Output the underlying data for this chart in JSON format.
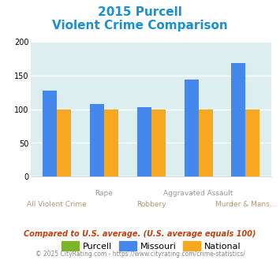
{
  "title_line1": "2015 Purcell",
  "title_line2": "Violent Crime Comparison",
  "groups": [
    "All Violent Crime",
    "Rape",
    "Robbery",
    "Aggravated Assault",
    "Murder & Mans..."
  ],
  "label_top": [
    "",
    "Rape",
    "Aggravated Assault",
    ""
  ],
  "label_bot": [
    "All Violent Crime",
    "Robbery",
    "Murder & Mans..."
  ],
  "purcell": [
    0,
    0,
    0,
    0,
    0
  ],
  "missouri": [
    128,
    108,
    103,
    144,
    168
  ],
  "national": [
    100,
    100,
    100,
    100,
    100
  ],
  "purcell_color": "#7db32a",
  "missouri_color": "#4488ee",
  "national_color": "#f5a820",
  "bg_color": "#ddeef0",
  "title_color": "#1a90d0",
  "xlabel_top_color": "#999999",
  "xlabel_bot_color": "#b8956a",
  "ylim": [
    0,
    200
  ],
  "yticks": [
    0,
    50,
    100,
    150,
    200
  ],
  "footer1": "Compared to U.S. average. (U.S. average equals 100)",
  "footer2": "© 2025 CityRating.com - https://www.cityrating.com/crime-statistics/",
  "footer1_color": "#c04010",
  "footer2_color": "#888888",
  "footer2_link_color": "#3399cc",
  "legend_labels": [
    "Purcell",
    "Missouri",
    "National"
  ]
}
